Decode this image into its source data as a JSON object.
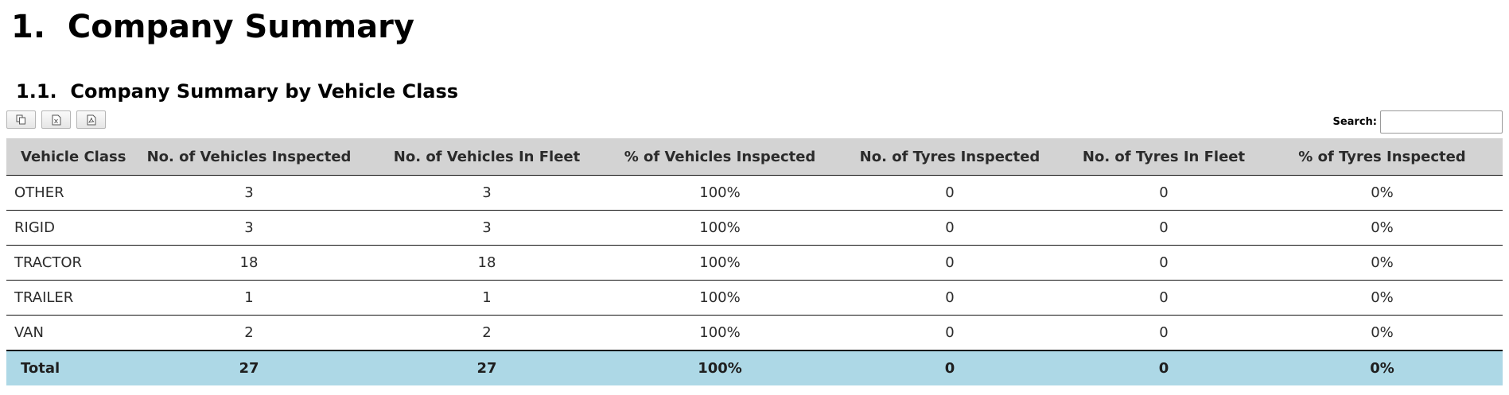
{
  "page_title": "1.  Company Summary",
  "section_title": "1.1.  Company Summary by Vehicle Class",
  "toolbar": {
    "buttons": [
      {
        "icon": "copy-icon"
      },
      {
        "icon": "excel-export-icon"
      },
      {
        "icon": "pdf-export-icon"
      }
    ]
  },
  "search": {
    "label": "Search:",
    "value": "",
    "placeholder": ""
  },
  "table": {
    "headers": [
      "Vehicle Class",
      "No. of Vehicles Inspected",
      "No. of Vehicles In Fleet",
      "% of Vehicles Inspected",
      "No. of Tyres Inspected",
      "No. of Tyres In Fleet",
      "% of Tyres Inspected"
    ],
    "rows": [
      [
        "OTHER",
        "3",
        "3",
        "100%",
        "0",
        "0",
        "0%"
      ],
      [
        "RIGID",
        "3",
        "3",
        "100%",
        "0",
        "0",
        "0%"
      ],
      [
        "TRACTOR",
        "18",
        "18",
        "100%",
        "0",
        "0",
        "0%"
      ],
      [
        "TRAILER",
        "1",
        "1",
        "100%",
        "0",
        "0",
        "0%"
      ],
      [
        "VAN",
        "2",
        "2",
        "100%",
        "0",
        "0",
        "0%"
      ]
    ],
    "total": [
      "Total",
      "27",
      "27",
      "100%",
      "0",
      "0",
      "0%"
    ]
  },
  "colors": {
    "header_bg": "#d3d3d3",
    "total_bg": "#add8e6"
  }
}
